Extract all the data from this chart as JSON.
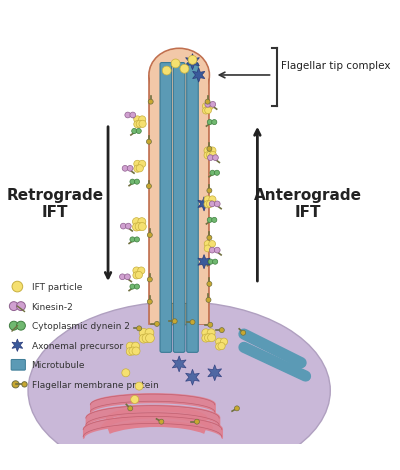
{
  "bg_color": "#ffffff",
  "cell_body_color": "#c9b8d8",
  "cell_body_edge": "#b0a0c0",
  "flagellum_outer_color": "#e8a882",
  "flagellum_outer_edge": "#c07050",
  "flagellum_inner_color": "#f2c8a8",
  "transition_zone_color": "#c8a070",
  "microtubule_color": "#5b9ab5",
  "microtubule_edge": "#3a7a95",
  "axoneme_stub_color": "#5b9ab5",
  "ift_particle_color": "#f5e070",
  "ift_particle_edge": "#c8b040",
  "kinesin_color": "#d0a0d0",
  "kinesin_edge": "#906090",
  "dynein_color": "#70b870",
  "dynein_edge": "#408040",
  "axonemal_star_color": "#3a5a9a",
  "membrane_protein_color": "#c8a830",
  "membrane_protein_stem": "#707040",
  "pink_fiber_color": "#e08090",
  "pink_fiber_edge": "#c06070",
  "title_color": "#222222",
  "label_color": "#333333",
  "arrow_color": "#222222",
  "flagellar_tip_bracket_color": "#333333",
  "retro_label": "Retrograde\nIFT",
  "antero_label": "Anterograde\nIFT",
  "tip_label": "Flagellar tip complex",
  "legend_items": [
    {
      "label": "IFT particle",
      "type": "circle",
      "color": "#f5e070",
      "edge": "#c8b040"
    },
    {
      "label": "Kinesin-2",
      "type": "kinesin",
      "color": "#d0a0d0",
      "edge": "#906090"
    },
    {
      "label": "Cytoplasmic dynein 2",
      "type": "dynein",
      "color": "#70b870",
      "edge": "#408040"
    },
    {
      "label": "Axonemal precursor",
      "type": "star",
      "color": "#3a5a9a"
    },
    {
      "label": "Microtubule",
      "type": "rect",
      "color": "#5b9ab5",
      "edge": "#3a7a95"
    },
    {
      "label": "Flagellar membrane protein",
      "type": "membrane",
      "color": "#c8a830",
      "stem": "#707040"
    }
  ]
}
